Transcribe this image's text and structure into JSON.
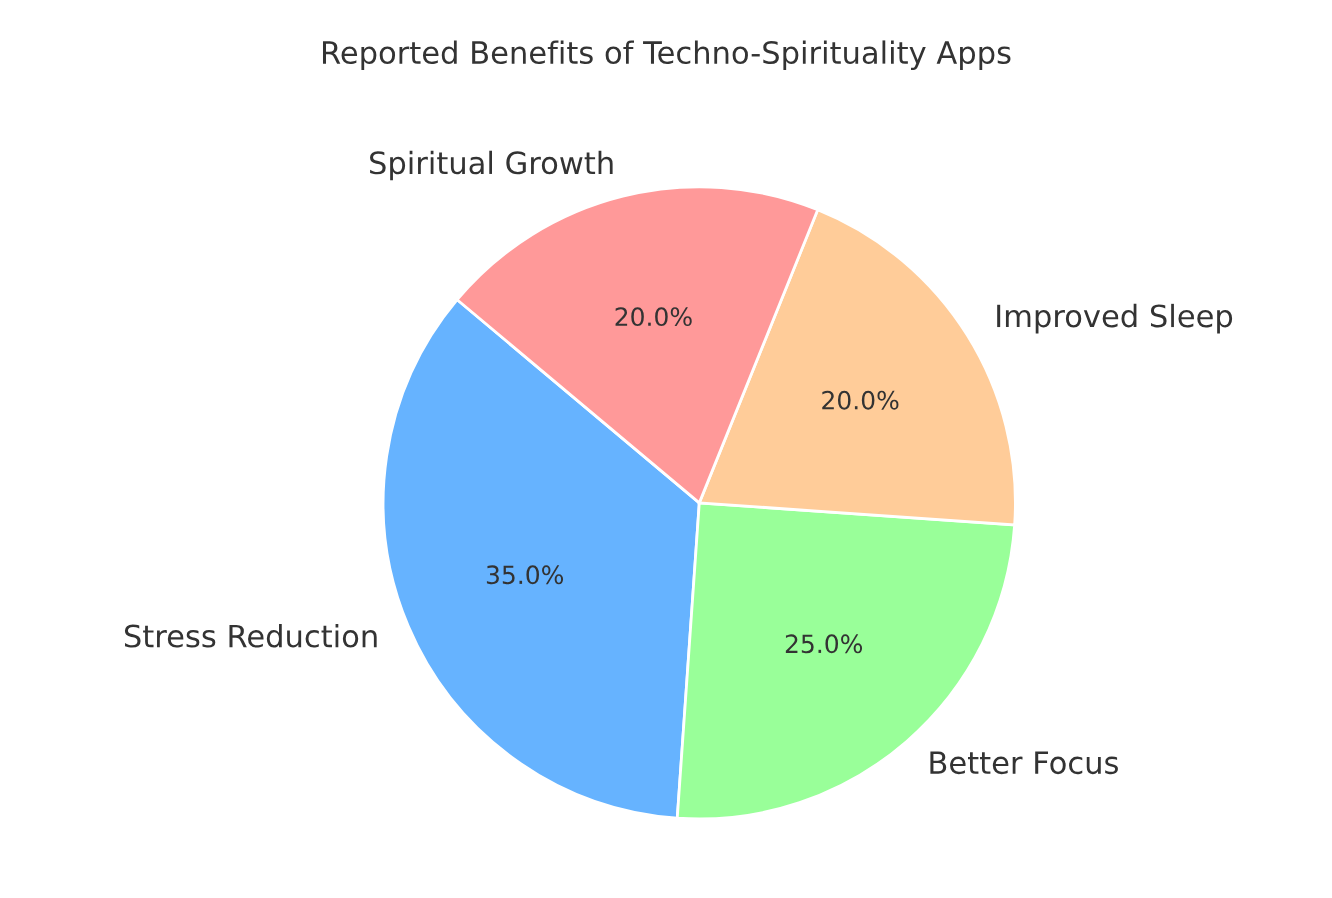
{
  "chart_data": {
    "type": "pie",
    "title": "Reported Benefits of Techno-Spirituality Apps",
    "categories": [
      "Stress Reduction",
      "Better Focus",
      "Improved Sleep",
      "Spiritual Growth"
    ],
    "values": [
      35,
      25,
      20,
      20
    ],
    "value_labels": [
      "35.0%",
      "25.0%",
      "20.0%",
      "20.0%"
    ],
    "colors": [
      "#66b3ff",
      "#99ff99",
      "#ffcc99",
      "#ff9999"
    ]
  }
}
